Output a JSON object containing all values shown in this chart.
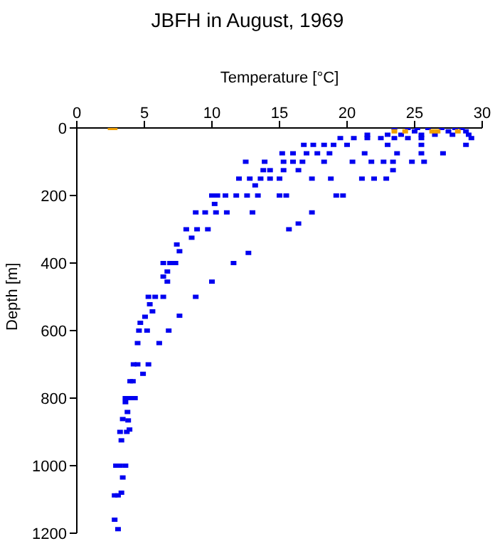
{
  "chart_data": {
    "type": "scatter",
    "title": "JBFH in August, 1969",
    "xlabel": "Temperature [°C]",
    "ylabel": "Depth [m]",
    "xlim": [
      0,
      30
    ],
    "xticks": [
      0,
      5,
      10,
      15,
      20,
      25,
      30
    ],
    "ylim": [
      1200,
      0
    ],
    "yticks": [
      0,
      200,
      400,
      600,
      800,
      1000,
      1200
    ],
    "grid": false,
    "marker": "square",
    "series": [
      {
        "color": "#0000f0",
        "x": [
          23.5,
          24.5,
          25.2,
          26,
          27,
          28,
          28.5,
          25,
          27.5,
          28.8,
          21.5,
          23,
          24,
          25.5,
          26.5,
          27.8,
          29,
          19.5,
          20.5,
          21.5,
          22.5,
          23.5,
          24.5,
          25.5,
          29.2,
          16.8,
          17.5,
          18.3,
          19,
          20,
          23,
          25.5,
          28.8,
          15.2,
          16,
          17,
          17.8,
          18.7,
          21.3,
          23.7,
          25.5,
          27.1,
          12.5,
          13.9,
          15.3,
          16,
          16.7,
          18.3,
          20.4,
          21.8,
          22.7,
          23.4,
          24.8,
          25.7,
          13.8,
          14.3,
          15.3,
          16.4,
          23.4,
          12,
          12.8,
          13.6,
          14.3,
          15,
          17.4,
          18.8,
          21.1,
          22,
          22.9,
          13.2,
          10,
          10.4,
          11,
          11.8,
          12.6,
          13.4,
          15,
          15.5,
          19.2,
          19.7,
          10.2,
          8.8,
          9.5,
          10.3,
          11.1,
          13,
          17.4,
          16.4,
          8.1,
          8.9,
          9.7,
          15.7,
          8.5,
          7.4,
          7.6,
          12.7,
          6.4,
          6.9,
          7.3,
          11.6,
          6.7,
          6.4,
          6.7,
          10,
          5.3,
          5.8,
          6.4,
          8.8,
          5.4,
          5.6,
          7.6,
          5.05,
          4.7,
          4.6,
          5.2,
          6.8,
          4.5,
          6.1,
          4.2,
          4.5,
          5.3,
          4.9,
          3.95,
          4.15,
          3.6,
          4,
          4.3,
          3.6,
          3.75,
          3.4,
          3.8,
          3.9,
          3.2,
          3.7,
          3.3,
          2.9,
          3.2,
          3.6,
          3.4,
          3.3,
          2.8,
          3.05,
          2.8,
          3.05
        ],
        "values": [
          0,
          0,
          0,
          0,
          0,
          0,
          0,
          10,
          10,
          10,
          20,
          20,
          20,
          20,
          20,
          20,
          20,
          30,
          30,
          30,
          30,
          30,
          30,
          30,
          30,
          50,
          50,
          50,
          50,
          50,
          50,
          50,
          50,
          75,
          75,
          75,
          75,
          75,
          75,
          75,
          75,
          75,
          100,
          100,
          100,
          100,
          100,
          100,
          100,
          100,
          100,
          100,
          100,
          100,
          125,
          125,
          125,
          125,
          125,
          150,
          150,
          150,
          150,
          150,
          150,
          150,
          150,
          150,
          150,
          170,
          200,
          200,
          200,
          200,
          200,
          200,
          200,
          200,
          200,
          200,
          225,
          250,
          250,
          250,
          250,
          250,
          250,
          283,
          300,
          300,
          300,
          300,
          325,
          345,
          365,
          370,
          400,
          400,
          400,
          400,
          425,
          440,
          455,
          455,
          500,
          500,
          500,
          500,
          522,
          543,
          556,
          559,
          577,
          600,
          600,
          600,
          637,
          637,
          700,
          700,
          700,
          728,
          750,
          750,
          800,
          800,
          800,
          812,
          841,
          862,
          866,
          893,
          900,
          900,
          925,
          1000,
          1000,
          1000,
          1035,
          1080,
          1088,
          1088,
          1160,
          1188
        ]
      },
      {
        "color": "#f0a000",
        "x": [
          2.5,
          2.8,
          23.5,
          24.3,
          26.3,
          26.7,
          28.2
        ],
        "values": [
          0,
          0,
          10,
          10,
          10,
          10,
          10
        ]
      }
    ]
  }
}
